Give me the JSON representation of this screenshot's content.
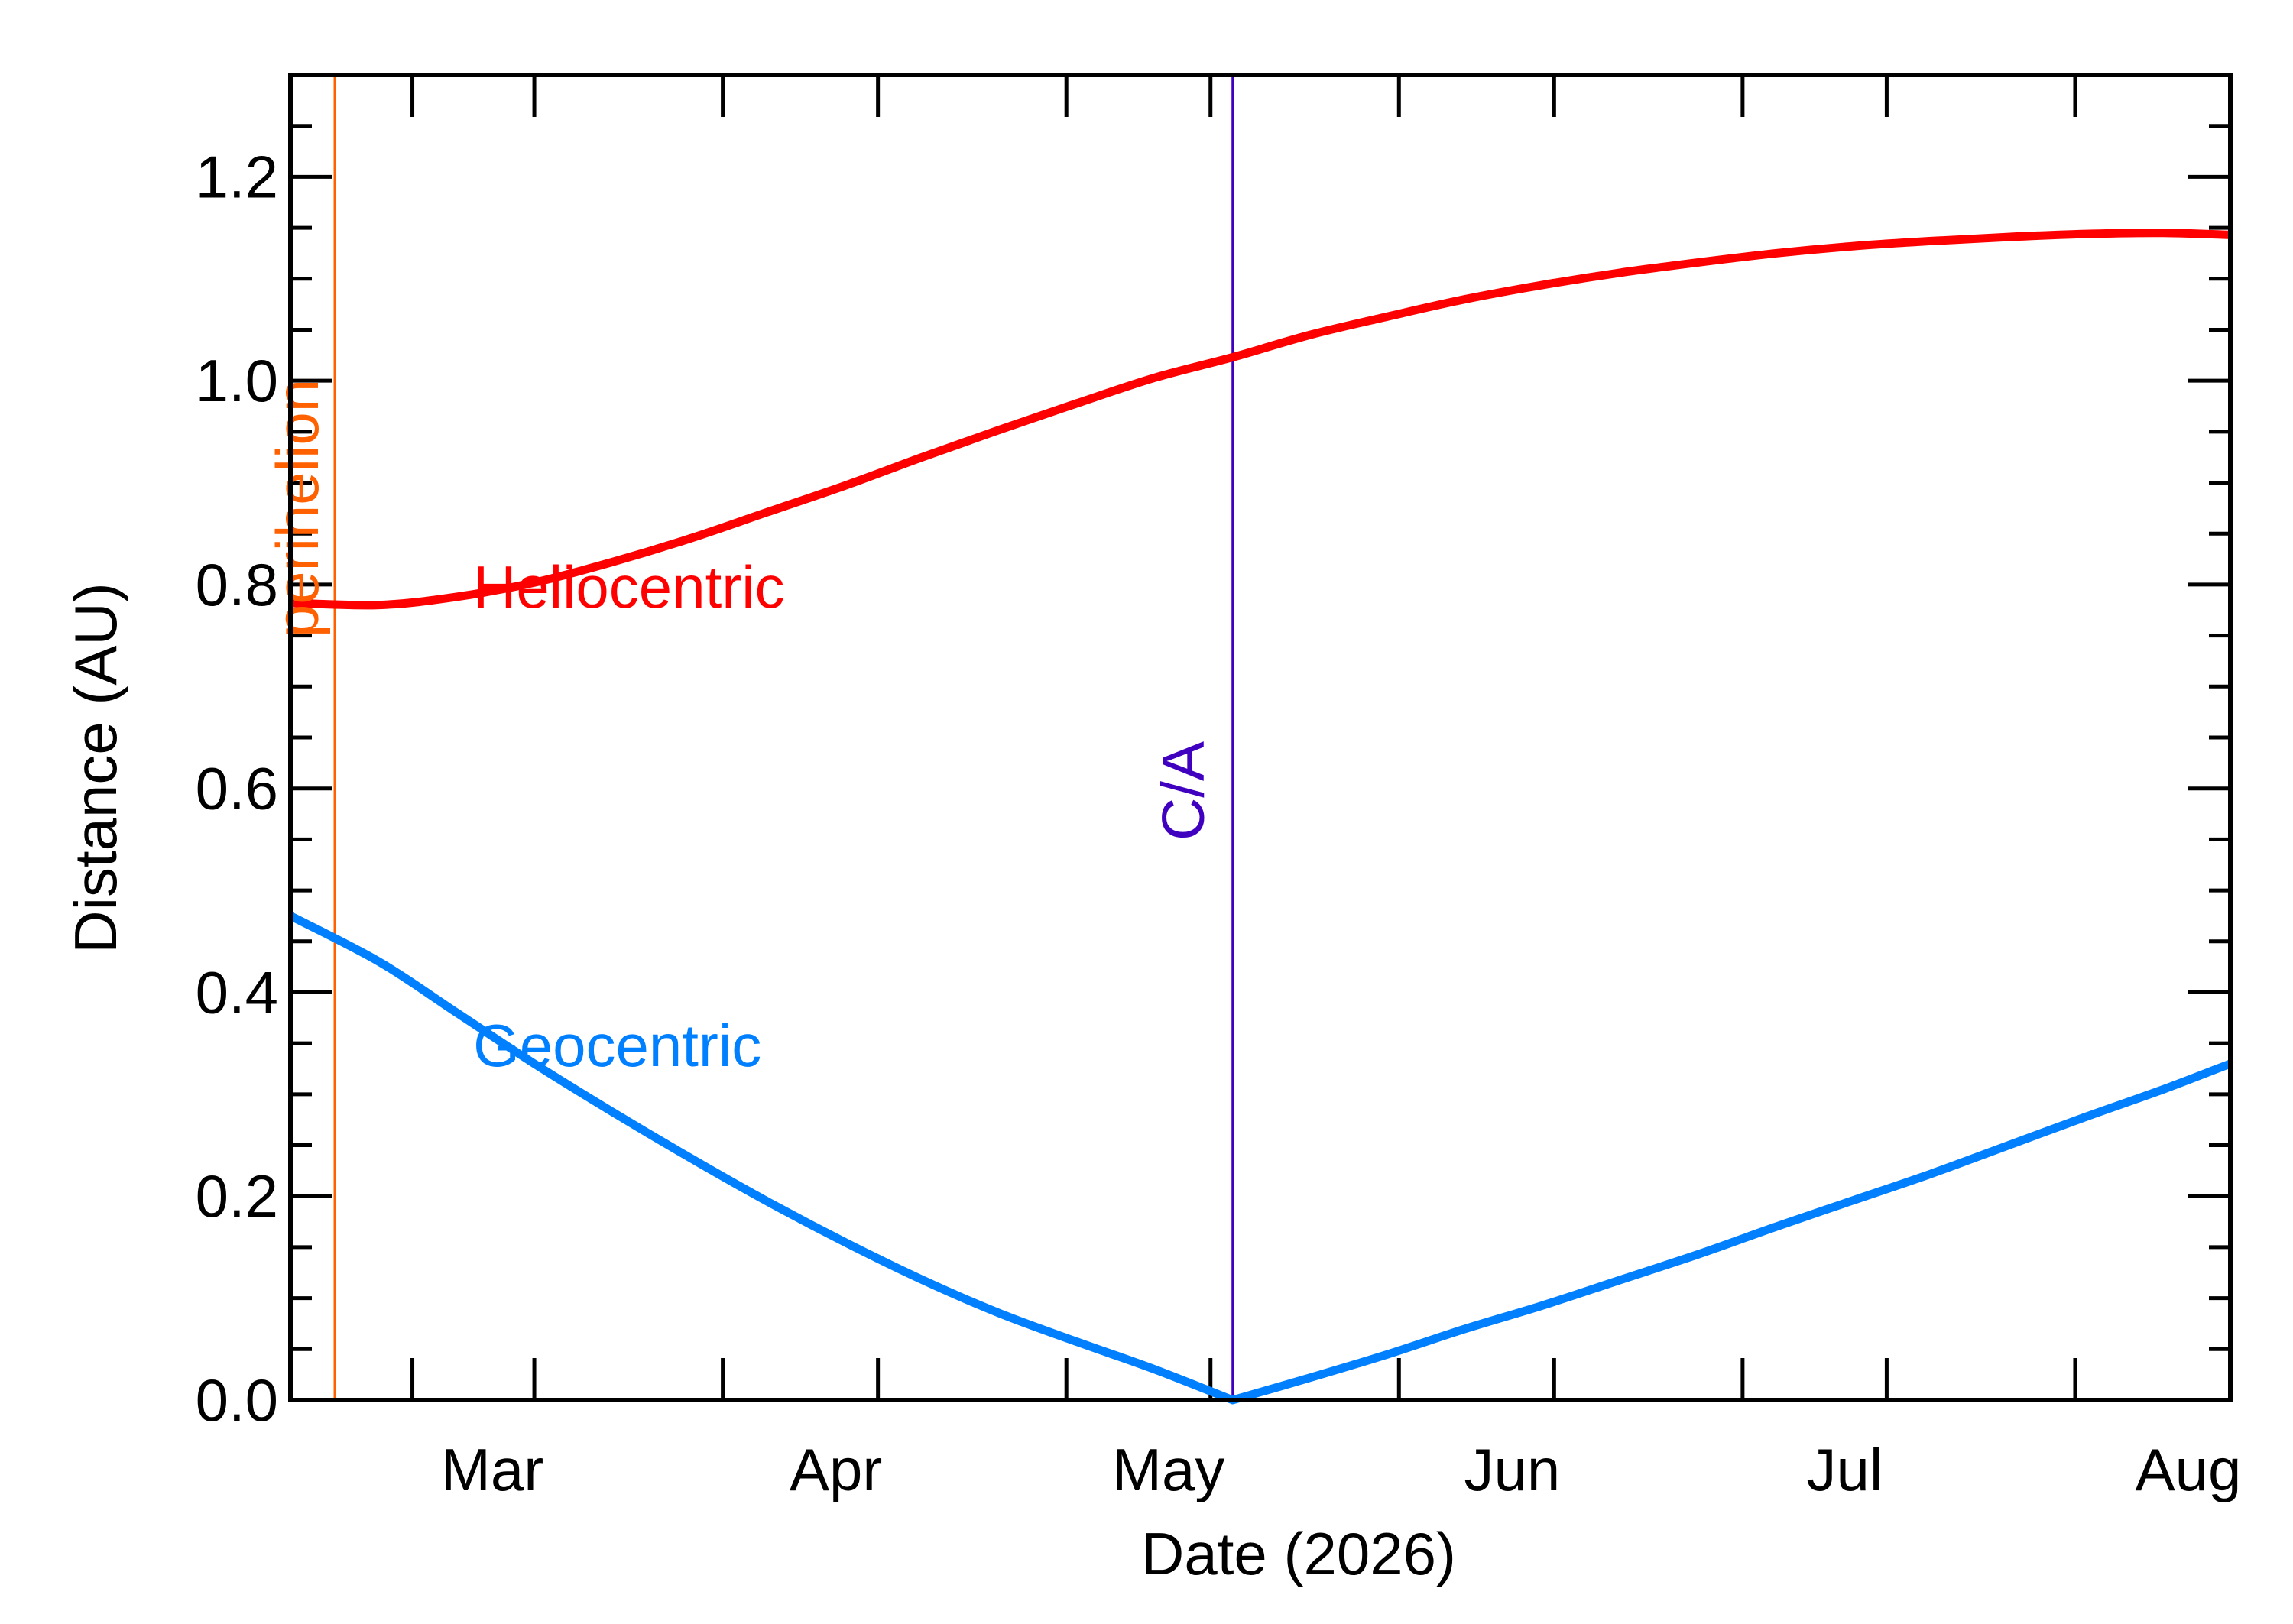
{
  "chart_data": {
    "type": "line",
    "xlabel": "Date (2026)",
    "ylabel": "Distance (AU)",
    "xlim": [
      "2026-02-07",
      "2026-08-01"
    ],
    "ylim": [
      0.0,
      1.3
    ],
    "x_ticks": [
      {
        "date": "2026-02-18",
        "label": ""
      },
      {
        "date": "2026-03-01",
        "label": "Mar"
      },
      {
        "date": "2026-03-18",
        "label": ""
      },
      {
        "date": "2026-04-01",
        "label": "Apr"
      },
      {
        "date": "2026-04-18",
        "label": ""
      },
      {
        "date": "2026-05-01",
        "label": "May"
      },
      {
        "date": "2026-05-18",
        "label": ""
      },
      {
        "date": "2026-06-01",
        "label": "Jun"
      },
      {
        "date": "2026-06-18",
        "label": ""
      },
      {
        "date": "2026-07-01",
        "label": "Jul"
      },
      {
        "date": "2026-07-18",
        "label": ""
      },
      {
        "date": "2026-08-01",
        "label": "Aug"
      }
    ],
    "y_ticks": [
      {
        "value": 0.0,
        "label": "0.0"
      },
      {
        "value": 0.2,
        "label": "0.2"
      },
      {
        "value": 0.4,
        "label": "0.4"
      },
      {
        "value": 0.6,
        "label": "0.6"
      },
      {
        "value": 0.8,
        "label": "0.8"
      },
      {
        "value": 1.0,
        "label": "1.0"
      },
      {
        "value": 1.2,
        "label": "1.2"
      }
    ],
    "y_minor_step": 0.05,
    "grid": false,
    "series": [
      {
        "name": "Heliocentric",
        "color": "#ff0000",
        "x": [
          "2026-02-07",
          "2026-02-15",
          "2026-02-22",
          "2026-03-01",
          "2026-03-08",
          "2026-03-15",
          "2026-03-22",
          "2026-03-29",
          "2026-04-05",
          "2026-04-12",
          "2026-04-19",
          "2026-04-26",
          "2026-05-03",
          "2026-05-10",
          "2026-05-17",
          "2026-05-24",
          "2026-05-31",
          "2026-06-07",
          "2026-06-14",
          "2026-06-21",
          "2026-06-28",
          "2026-07-05",
          "2026-07-12",
          "2026-07-19",
          "2026-07-26",
          "2026-08-01"
        ],
        "values": [
          0.782,
          0.78,
          0.788,
          0.802,
          0.822,
          0.845,
          0.871,
          0.897,
          0.925,
          0.952,
          0.978,
          1.003,
          1.023,
          1.045,
          1.063,
          1.08,
          1.094,
          1.106,
          1.116,
          1.125,
          1.132,
          1.137,
          1.141,
          1.144,
          1.145,
          1.143
        ]
      },
      {
        "name": "Geocentric",
        "color": "#0080ff",
        "x": [
          "2026-02-07",
          "2026-02-15",
          "2026-02-22",
          "2026-03-01",
          "2026-03-08",
          "2026-03-15",
          "2026-03-22",
          "2026-03-29",
          "2026-04-05",
          "2026-04-12",
          "2026-04-19",
          "2026-04-26",
          "2026-05-03",
          "2026-05-10",
          "2026-05-17",
          "2026-05-24",
          "2026-05-31",
          "2026-06-07",
          "2026-06-14",
          "2026-06-21",
          "2026-06-28",
          "2026-07-05",
          "2026-07-12",
          "2026-07-19",
          "2026-07-26",
          "2026-08-01"
        ],
        "values": [
          0.475,
          0.43,
          0.38,
          0.33,
          0.283,
          0.238,
          0.195,
          0.155,
          0.118,
          0.085,
          0.057,
          0.03,
          0.0,
          0.022,
          0.045,
          0.07,
          0.093,
          0.118,
          0.143,
          0.17,
          0.196,
          0.222,
          0.25,
          0.278,
          0.305,
          0.33
        ]
      }
    ],
    "annotations": [
      {
        "text": "perihelion",
        "date": "2026-02-11",
        "color": "#ff6000",
        "orientation": "vertical"
      },
      {
        "text": "C/A",
        "date": "2026-05-03",
        "color": "#4000c0",
        "orientation": "vertical"
      },
      {
        "text": "Heliocentric",
        "color": "#ff0000",
        "date": "2026-03-01",
        "value": 0.8
      },
      {
        "text": "Geocentric",
        "color": "#0080ff",
        "date": "2026-03-01",
        "value": 0.35
      }
    ]
  }
}
